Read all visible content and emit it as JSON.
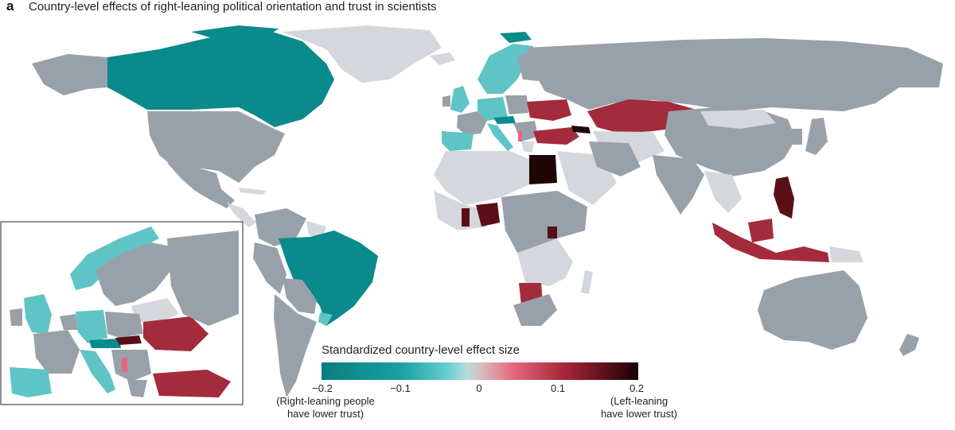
{
  "panel_label": "a",
  "title": "Country-level effects of right-leaning political orientation and trust in scientists",
  "legend": {
    "title": "Standardized country-level effect size",
    "ticks": [
      "−0.2",
      "−0.1",
      "0",
      "0.1",
      "0.2"
    ],
    "tick_values": [
      -0.2,
      -0.1,
      0,
      0.1,
      0.2
    ],
    "left_note_line1": "(Right-leaning people",
    "left_note_line2": "have lower trust)",
    "right_note_line1": "(Left-leaning",
    "right_note_line2": "have lower trust)"
  },
  "colors": {
    "no_data": "#d4d7dc",
    "not_significant": "#98a1aa",
    "strong_negative": "#0a8a8b",
    "mild_negative": "#5fc4c6",
    "mild_positive": "#e8657c",
    "moderate_positive": "#a32b3c",
    "strong_positive": "#5a0f18",
    "very_strong_positive": "#1e0606"
  },
  "inset": {
    "name": "Europe"
  }
}
